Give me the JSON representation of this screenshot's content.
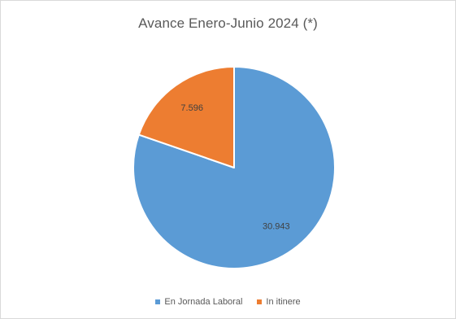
{
  "chart_data": {
    "type": "pie",
    "title": "Avance Enero-Junio 2024 (*)",
    "start_angle_deg": 0,
    "direction": "clockwise",
    "legend_position": "bottom",
    "slices": [
      {
        "label": "En Jornada Laboral",
        "value": 30943,
        "display_value": "30.943",
        "color": "#5b9bd5"
      },
      {
        "label": "In itinere",
        "value": 7596,
        "display_value": "7.596",
        "color": "#ed7d31"
      }
    ]
  }
}
